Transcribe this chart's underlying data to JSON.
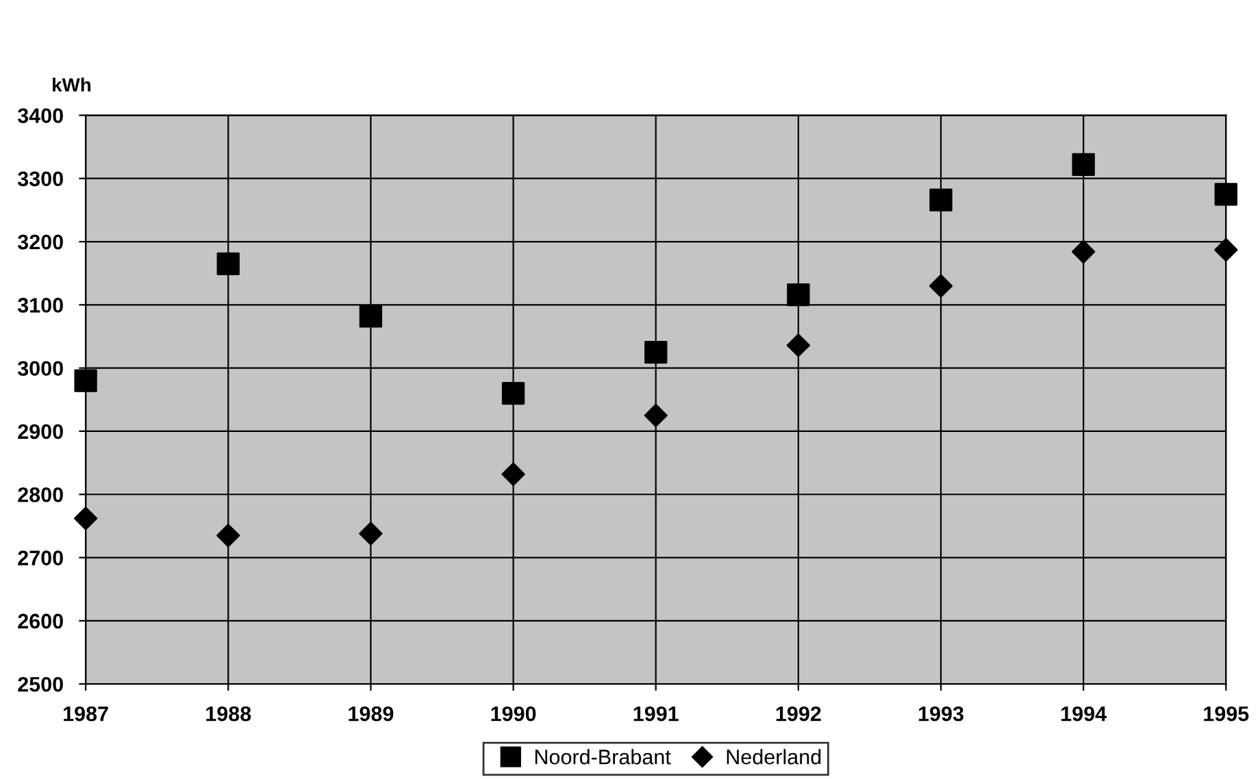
{
  "chart_data": {
    "type": "scatter",
    "ylabel": "kWh",
    "x": [
      1987,
      1988,
      1989,
      1990,
      1991,
      1992,
      1993,
      1994,
      1995
    ],
    "series": [
      {
        "name": "Noord-Brabant",
        "color": "#000000",
        "marker": "square",
        "values": [
          2980,
          3165,
          3082,
          2960,
          3025,
          3116,
          3266,
          3322,
          3275
        ]
      },
      {
        "name": "Nederland",
        "color": "#000000",
        "marker": "diamond",
        "values": [
          2762,
          2735,
          2738,
          2832,
          2925,
          3036,
          3130,
          3184,
          3187
        ]
      }
    ],
    "xlim": [
      1987,
      1995
    ],
    "xticks": [
      1987,
      1988,
      1989,
      1990,
      1991,
      1992,
      1993,
      1994,
      1995
    ],
    "ylim": [
      2500,
      3400
    ],
    "yticks": [
      2500,
      2600,
      2700,
      2800,
      2900,
      3000,
      3100,
      3200,
      3300,
      3400
    ],
    "grid": true,
    "legend": "bottom"
  }
}
